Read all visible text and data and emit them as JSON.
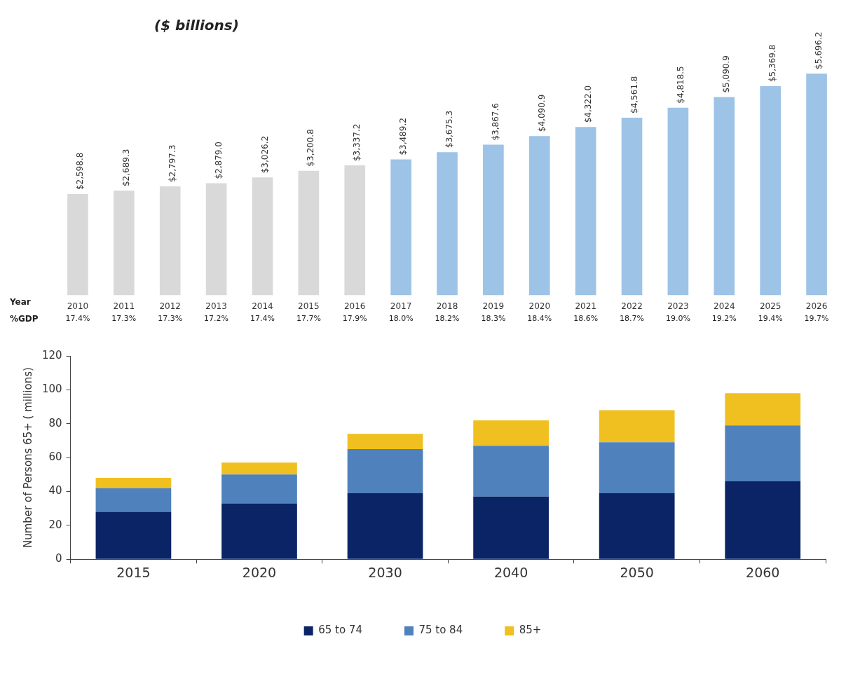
{
  "chart_data": [
    {
      "type": "bar",
      "title": "($ billions)",
      "xlabel": "Year",
      "categories": [
        "2010",
        "2011",
        "2012",
        "2013",
        "2014",
        "2015",
        "2016",
        "2017",
        "2018",
        "2019",
        "2020",
        "2021",
        "2022",
        "2023",
        "2024",
        "2025",
        "2026"
      ],
      "values": [
        2598.8,
        2689.3,
        2797.3,
        2879.0,
        3026.2,
        3200.8,
        3337.2,
        3489.2,
        3675.3,
        3867.6,
        4090.9,
        4322.0,
        4561.8,
        4818.5,
        5090.9,
        5369.8,
        5696.2
      ],
      "value_labels": [
        "$2,598.8",
        "$2,689.3",
        "$2,797.3",
        "$2,879.0",
        "$3,026.2",
        "$3,200.8",
        "$3,337.2",
        "$3,489.2",
        "$3,675.3",
        "$3,867.6",
        "$4,090.9",
        "$4,322.0",
        "$4,561.8",
        "$4,818.5",
        "$5,090.9",
        "$5,369.8",
        "$5,696.2"
      ],
      "colors": [
        "#d9d9d9",
        "#d9d9d9",
        "#d9d9d9",
        "#d9d9d9",
        "#d9d9d9",
        "#d9d9d9",
        "#d9d9d9",
        "#9dc3e6",
        "#9dc3e6",
        "#9dc3e6",
        "#9dc3e6",
        "#9dc3e6",
        "#9dc3e6",
        "#9dc3e6",
        "#9dc3e6",
        "#9dc3e6",
        "#9dc3e6"
      ],
      "annotations": [
        "%GDP",
        "17.4%",
        "17.3%",
        "17.3%",
        "17.2%",
        "17.4%",
        "17.7%",
        "17.9%",
        "18.0%",
        "18.2%",
        "18.3%",
        "18.4%",
        "18.6%",
        "18.7%",
        "19.0%",
        "19.2%",
        "19.4%",
        "19.7%"
      ],
      "tick_labels": "x",
      "grid": false,
      "legend": false
    },
    {
      "type": "bar",
      "stacked": true,
      "ylabel": "Number of Persons 65+ ( millions)",
      "categories": [
        "2015",
        "2020",
        "2030",
        "2040",
        "2050",
        "2060"
      ],
      "series": [
        {
          "name": "65 to 74",
          "color": "#0b2466",
          "values": [
            28,
            33,
            39,
            37,
            39,
            46
          ]
        },
        {
          "name": "75 to 84",
          "color": "#4f81bd",
          "values": [
            14,
            17,
            26,
            30,
            30,
            33
          ]
        },
        {
          "name": "85+",
          "color": "#f0c020",
          "values": [
            6,
            7,
            9,
            15,
            19,
            19
          ]
        }
      ],
      "ylim": [
        0,
        120
      ],
      "yticks": [
        0,
        20,
        40,
        60,
        80,
        100,
        120
      ],
      "grid": false,
      "legend": "bottom"
    }
  ]
}
